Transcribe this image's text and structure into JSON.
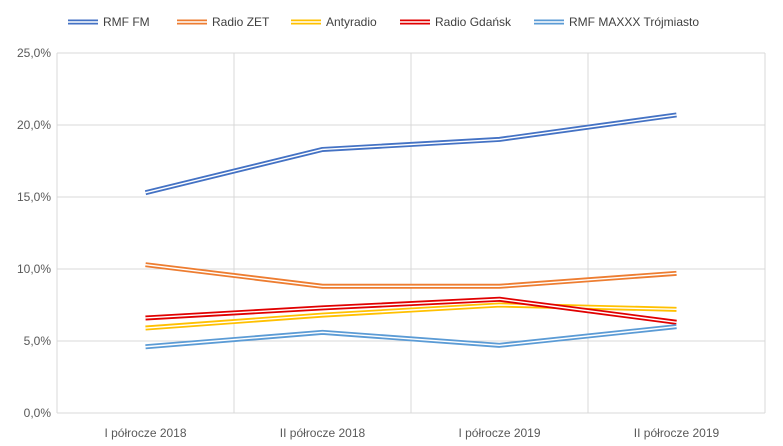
{
  "chart_data": {
    "type": "line",
    "categories": [
      "I półrocze 2018",
      "II półrocze 2018",
      "I półrocze 2019",
      "II półrocze 2019"
    ],
    "ylim": [
      0,
      25
    ],
    "yticks": [
      "0,0%",
      "5,0%",
      "10,0%",
      "15,0%",
      "20,0%",
      "25,0%"
    ],
    "grid": "both",
    "legend": "top",
    "series": [
      {
        "name": "RMF FM",
        "color": "#4472C4",
        "values": [
          15.3,
          18.3,
          19.0,
          20.7
        ]
      },
      {
        "name": "Radio ZET",
        "color": "#ED7D31",
        "values": [
          10.3,
          8.8,
          8.8,
          9.7
        ]
      },
      {
        "name": "Antyradio",
        "color": "#FFC000",
        "values": [
          5.9,
          6.8,
          7.5,
          7.2
        ]
      },
      {
        "name": "Radio Gdańsk",
        "color": "#E00000",
        "values": [
          6.6,
          7.3,
          7.9,
          6.3
        ]
      },
      {
        "name": "RMF MAXXX Trójmiasto",
        "color": "#5B9BD5",
        "values": [
          4.6,
          5.6,
          4.7,
          6.0
        ]
      }
    ]
  }
}
